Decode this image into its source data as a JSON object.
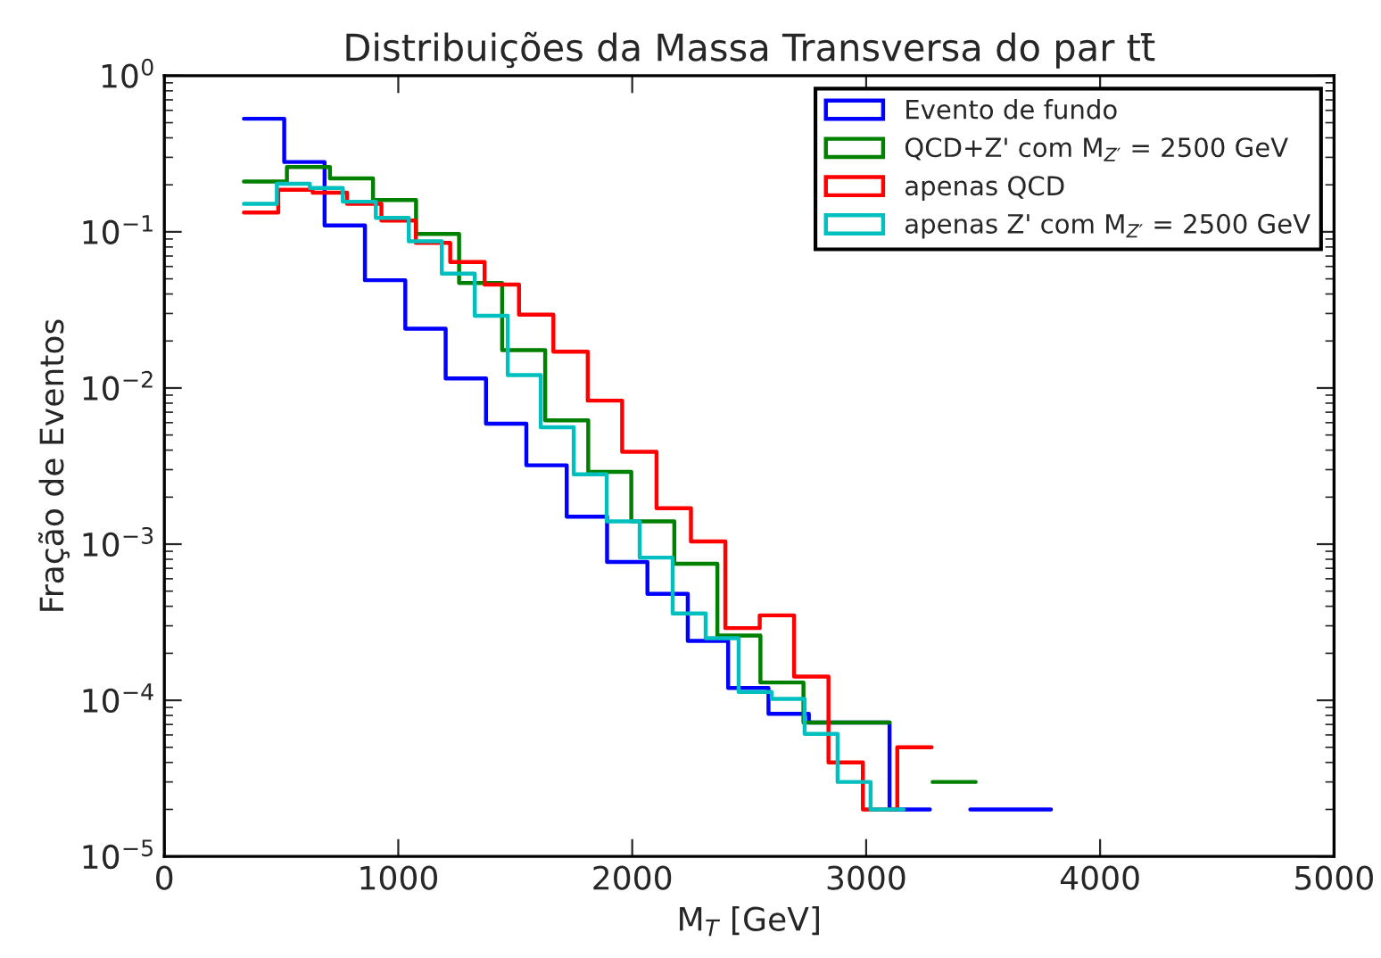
{
  "chart_data": {
    "type": "step",
    "title": "Distribuições da Massa Transversa do par tt̄",
    "xlabel": "M$_{T}$ [GeV]",
    "ylabel": "Fração de Eventos",
    "log": "y",
    "grid": false,
    "legend": "top right",
    "xlim": [
      0,
      5000
    ],
    "xticks": [
      0,
      1000,
      2000,
      3000,
      4000,
      5000
    ],
    "ylim": [
      1e-05,
      1
    ],
    "yticks": [
      {
        "value": 1e-05,
        "label": "10$^{−5}$"
      },
      {
        "value": 0.0001,
        "label": "10$^{−4}$"
      },
      {
        "value": 0.001,
        "label": "10$^{−3}$"
      },
      {
        "value": 0.01,
        "label": "10$^{−2}$"
      },
      {
        "value": 0.1,
        "label": "10$^{−1}$"
      },
      {
        "value": 1,
        "label": "10$^{0}$"
      }
    ],
    "series": [
      {
        "name": "Evento de fundo",
        "color": "#0000ff",
        "x": [
          340,
          512.5,
          685,
          857.5,
          1030,
          1202.5,
          1375,
          1547.5,
          1720,
          1892.5,
          2065,
          2237.5,
          2410,
          2582.5,
          2755,
          2927.5,
          3100,
          3272.5,
          3445,
          3617.5,
          3790
        ],
        "values": [
          0.53,
          0.28,
          0.11,
          0.049,
          0.024,
          0.0115,
          0.0059,
          0.0032,
          0.0015,
          0.00077,
          0.00048,
          0.00024,
          0.00012,
          8.2e-05,
          7.2e-05,
          7.2e-05,
          2e-05,
          null,
          2e-05,
          2e-05,
          2e-05
        ]
      },
      {
        "name": "QCD+Z' com M$_{Z′}$ = 2500 GeV",
        "color": "#008000",
        "x": [
          340,
          524,
          708,
          892,
          1076,
          1260,
          1444,
          1628,
          1812,
          1996,
          2180,
          2364,
          2548,
          2732,
          2916,
          3100,
          3284,
          3468
        ],
        "values": [
          0.21,
          0.26,
          0.22,
          0.16,
          0.097,
          0.047,
          0.0175,
          0.0062,
          0.0029,
          0.0014,
          0.00075,
          0.00026,
          0.00013,
          7.2e-05,
          7.2e-05,
          null,
          3e-05,
          3e-05
        ]
      },
      {
        "name": "apenas QCD",
        "color": "#ff0000",
        "x": [
          340,
          487,
          634,
          781,
          928,
          1075,
          1222,
          1369,
          1516,
          1663,
          1810,
          1957,
          2104,
          2251,
          2398,
          2545,
          2692,
          2839,
          2986,
          3133,
          3280
        ],
        "values": [
          0.133,
          0.186,
          0.178,
          0.151,
          0.118,
          0.085,
          0.064,
          0.046,
          0.0295,
          0.0171,
          0.0083,
          0.0039,
          0.0017,
          0.00104,
          0.00029,
          0.00035,
          0.000142,
          4e-05,
          2e-05,
          5e-05,
          5e-05
        ]
      },
      {
        "name": "apenas Z' com M$_{Z′}$ = 2500 GeV",
        "color": "#00bfbf",
        "x": [
          340,
          481,
          622,
          763,
          904,
          1045,
          1186,
          1327,
          1468,
          1609,
          1750,
          1891,
          2032,
          2173,
          2314,
          2455,
          2596,
          2737,
          2878,
          3019,
          3160
        ],
        "values": [
          0.151,
          0.203,
          0.191,
          0.156,
          0.123,
          0.087,
          0.054,
          0.029,
          0.0121,
          0.0056,
          0.0028,
          0.0014,
          0.00082,
          0.00036,
          0.00025,
          0.000113,
          0.000102,
          6.1e-05,
          3e-05,
          2e-05,
          2e-05
        ]
      }
    ]
  }
}
